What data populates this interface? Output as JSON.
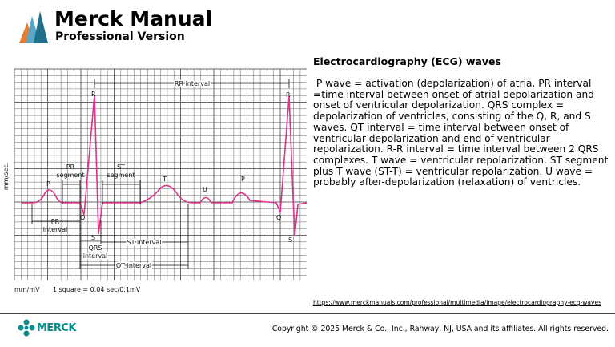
{
  "header": {
    "title": "Merck Manual",
    "subtitle": "Professional Version"
  },
  "figure": {
    "y_axis": "mm/sec.",
    "rr_interval": "RR interval",
    "r_1": "R",
    "r_2": "R",
    "pr_segment": [
      "PR",
      "segment"
    ],
    "st_segment": [
      "ST",
      "segment"
    ],
    "p_1": "P",
    "t": "T",
    "u": "U",
    "p_2": "P",
    "q_1": "Q",
    "q_2": "Q",
    "s_1": "S",
    "s_2": "S",
    "pr_interval": [
      "PR",
      "interval"
    ],
    "qrs_interval": [
      "QRS",
      "interval"
    ],
    "st_interval": "ST interval",
    "qt_interval": "QT interval",
    "scale": "mm/mV",
    "square": "1 square = 0.04 sec/0.1mV"
  },
  "section": {
    "heading": "Electrocardiography (ECG) waves",
    "body": " P wave = activation (depolarization) of atria. PR interval =time interval between onset of atrial depolarization and onset of ventricular depolarization. QRS complex = depolarization of ventricles, consisting of the Q, R, and S waves. QT interval = time interval between onset of ventricular depolarization and end of ventricular repolarization. R-R interval = time interval between 2 QRS complexes. T wave = ventricular repolarization. ST segment plus T wave (ST-T) = ventricular repolarization. U wave = probably after-depolarization (relaxation) of ventricles."
  },
  "footer": {
    "link": "https://www.merckmanuals.com/professional/multimedia/image/electrocardiography-ecg-waves",
    "logo": "MERCK",
    "copyright": "Copyright © 2025 Merck & Co., Inc., Rahway, NJ, USA and its affiliates. All rights reserved."
  }
}
